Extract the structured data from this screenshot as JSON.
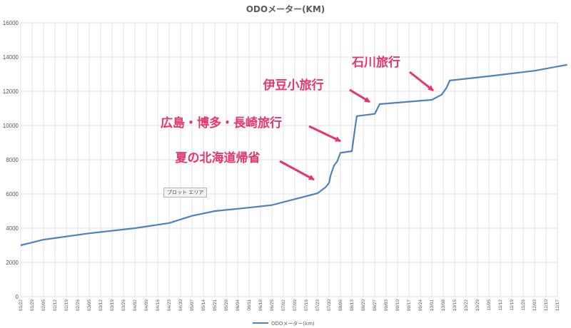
{
  "chart_data": {
    "type": "line",
    "title": "ODOメーター(KM)",
    "ylim": [
      0,
      16000
    ],
    "y_ticks": [
      0,
      2000,
      4000,
      6000,
      8000,
      10000,
      12000,
      14000,
      16000
    ],
    "grid": true,
    "legend_position": "bottom",
    "x_ticks": [
      "01/22",
      "01/29",
      "02/05",
      "02/12",
      "02/19",
      "02/26",
      "03/05",
      "03/12",
      "03/19",
      "03/26",
      "04/02",
      "04/09",
      "04/16",
      "04/23",
      "04/30",
      "05/07",
      "05/14",
      "05/21",
      "05/28",
      "06/04",
      "06/11",
      "06/18",
      "06/25",
      "07/02",
      "07/09",
      "07/16",
      "07/23",
      "07/30",
      "08/06",
      "08/13",
      "08/20",
      "08/27",
      "09/03",
      "09/10",
      "09/17",
      "09/24",
      "10/01",
      "10/08",
      "10/15",
      "10/22",
      "10/29",
      "11/05",
      "11/12",
      "11/19",
      "11/26",
      "12/03",
      "12/10",
      "12/17"
    ],
    "series": [
      {
        "name": "ODOメーター(km)",
        "color": "#4f81bd",
        "points": [
          {
            "x": "01/22",
            "y": 3000
          },
          {
            "x": "02/05",
            "y": 3330
          },
          {
            "x": "03/05",
            "y": 3700
          },
          {
            "x": "04/02",
            "y": 4000
          },
          {
            "x": "04/23",
            "y": 4300
          },
          {
            "x": "05/07",
            "y": 4720
          },
          {
            "x": "05/21",
            "y": 5000
          },
          {
            "x": "06/11",
            "y": 5200
          },
          {
            "x": "06/25",
            "y": 5350
          },
          {
            "x": "07/23",
            "y": 6040
          },
          {
            "x": "07/28",
            "y": 6400
          },
          {
            "x": "07/30",
            "y": 6650
          },
          {
            "x": "07/31",
            "y": 7100
          },
          {
            "x": "08/02",
            "y": 7650
          },
          {
            "x": "08/04",
            "y": 7900
          },
          {
            "x": "08/06",
            "y": 8400
          },
          {
            "x": "08/13",
            "y": 8500
          },
          {
            "x": "08/15",
            "y": 9900
          },
          {
            "x": "08/16",
            "y": 10550
          },
          {
            "x": "08/27",
            "y": 10680
          },
          {
            "x": "08/30",
            "y": 11250
          },
          {
            "x": "10/01",
            "y": 11500
          },
          {
            "x": "10/07",
            "y": 11800
          },
          {
            "x": "10/10",
            "y": 12200
          },
          {
            "x": "10/12",
            "y": 12630
          },
          {
            "x": "11/05",
            "y": 12880
          },
          {
            "x": "12/03",
            "y": 13200
          },
          {
            "x": "12/23",
            "y": 13550
          }
        ]
      }
    ],
    "annotations": [
      {
        "text": "石川旅行",
        "color": "#e8336d"
      },
      {
        "text": "伊豆小旅行",
        "color": "#e8336d"
      },
      {
        "text": "広島・博多・長崎旅行",
        "color": "#e8336d"
      },
      {
        "text": "夏の北海道帰省",
        "color": "#e8336d"
      }
    ]
  },
  "tooltip": "プロット エリア"
}
